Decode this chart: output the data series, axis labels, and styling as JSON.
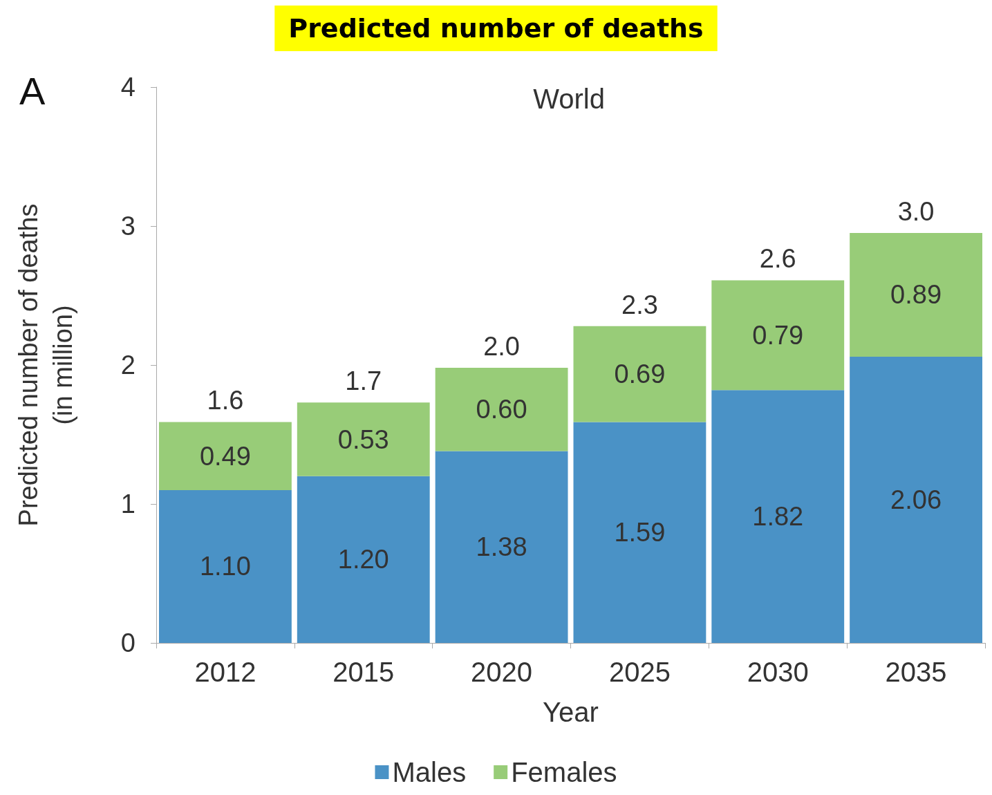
{
  "chart_data": {
    "type": "bar",
    "title": "Predicted number of deaths",
    "subtitle": "World",
    "annotations": [
      "A"
    ],
    "xlabel": "Year",
    "ylabel": "Predicted number of deaths\n(in million)",
    "categories": [
      "2012",
      "2015",
      "2020",
      "2025",
      "2030",
      "2035"
    ],
    "stacked": true,
    "series": [
      {
        "name": "Males",
        "color": "#4a92c6",
        "values": [
          1.1,
          1.2,
          1.38,
          1.59,
          1.82,
          2.06
        ],
        "value_labels": [
          "1.10",
          "1.20",
          "1.38",
          "1.59",
          "1.82",
          "2.06"
        ]
      },
      {
        "name": "Females",
        "color": "#98cc78",
        "values": [
          0.49,
          0.53,
          0.6,
          0.69,
          0.79,
          0.89
        ],
        "value_labels": [
          "0.49",
          "0.53",
          "0.60",
          "0.69",
          "0.79",
          "0.89"
        ]
      }
    ],
    "totals": [
      "1.6",
      "1.7",
      "2.0",
      "2.3",
      "2.6",
      "3.0"
    ],
    "ylim": [
      0,
      4
    ],
    "yticks": [
      0,
      1,
      2,
      3,
      4
    ],
    "grid": false,
    "legend": "bottom"
  }
}
